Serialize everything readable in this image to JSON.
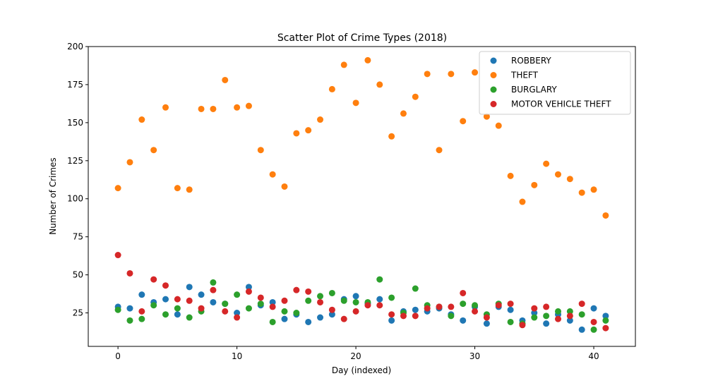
{
  "chart_data": {
    "type": "scatter",
    "title": "Scatter Plot of Crime Types (2018)",
    "xlabel": "Day (indexed)",
    "ylabel": "Number of Crimes",
    "xlim": [
      -2.5,
      43.5
    ],
    "ylim": [
      3,
      200
    ],
    "xticks": [
      0,
      10,
      20,
      30,
      40
    ],
    "yticks": [
      25,
      50,
      75,
      100,
      125,
      150,
      175,
      200
    ],
    "grid": false,
    "legend_position": "top-right",
    "x": [
      0,
      1,
      2,
      3,
      4,
      5,
      6,
      7,
      8,
      9,
      10,
      11,
      12,
      13,
      14,
      15,
      16,
      17,
      18,
      19,
      20,
      21,
      22,
      23,
      24,
      25,
      26,
      27,
      28,
      29,
      30,
      31,
      32,
      33,
      34,
      35,
      36,
      37,
      38,
      39,
      40,
      41
    ],
    "series": [
      {
        "name": "ROBBERY",
        "color": "#1f77b4",
        "values": [
          29,
          28,
          37,
          32,
          34,
          24,
          42,
          37,
          32,
          31,
          25,
          42,
          30,
          32,
          21,
          24,
          19,
          22,
          24,
          34,
          36,
          31,
          34,
          20,
          26,
          27,
          26,
          28,
          24,
          20,
          29,
          18,
          29,
          27,
          20,
          25,
          18,
          24,
          20,
          14,
          28,
          23
        ]
      },
      {
        "name": "THEFT",
        "color": "#ff7f0e",
        "values": [
          107,
          124,
          152,
          132,
          160,
          107,
          106,
          159,
          159,
          178,
          160,
          161,
          132,
          116,
          108,
          143,
          145,
          152,
          172,
          188,
          163,
          191,
          175,
          141,
          156,
          167,
          182,
          132,
          182,
          151,
          183,
          154,
          148,
          115,
          98,
          109,
          123,
          116,
          113,
          104,
          106,
          89
        ]
      },
      {
        "name": "BURGLARY",
        "color": "#2ca02c",
        "values": [
          27,
          20,
          21,
          30,
          24,
          28,
          22,
          26,
          45,
          31,
          37,
          28,
          31,
          19,
          26,
          25,
          33,
          36,
          38,
          33,
          32,
          32,
          47,
          35,
          25,
          41,
          30,
          29,
          23,
          31,
          30,
          24,
          31,
          19,
          18,
          22,
          23,
          26,
          26,
          24,
          14,
          20
        ]
      },
      {
        "name": "MOTOR VEHICLE THEFT",
        "color": "#d62728",
        "values": [
          63,
          51,
          26,
          47,
          43,
          34,
          33,
          28,
          40,
          26,
          22,
          39,
          35,
          29,
          33,
          40,
          39,
          32,
          27,
          21,
          26,
          30,
          30,
          24,
          23,
          23,
          28,
          29,
          29,
          38,
          26,
          22,
          30,
          31,
          17,
          28,
          29,
          21,
          23,
          31,
          19,
          15
        ]
      }
    ]
  }
}
